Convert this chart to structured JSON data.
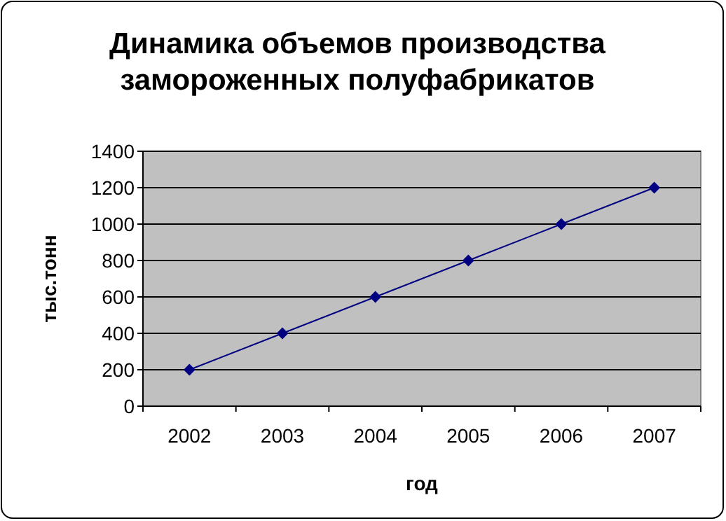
{
  "chart_data": {
    "type": "line",
    "title": "Динамика объемов производства\nзамороженных полуфабрикатов",
    "xlabel": "год",
    "ylabel": "тыс.тонн",
    "categories": [
      "2002",
      "2003",
      "2004",
      "2005",
      "2006",
      "2007"
    ],
    "series": [
      {
        "color": "#000080",
        "values": [
          200,
          400,
          600,
          800,
          1000,
          1200
        ]
      }
    ],
    "ylim": [
      0,
      1400
    ],
    "yticks": [
      0,
      200,
      400,
      600,
      800,
      1000,
      1200,
      1400
    ],
    "grid": "y",
    "marker": "diamond",
    "line_style": "solid"
  }
}
